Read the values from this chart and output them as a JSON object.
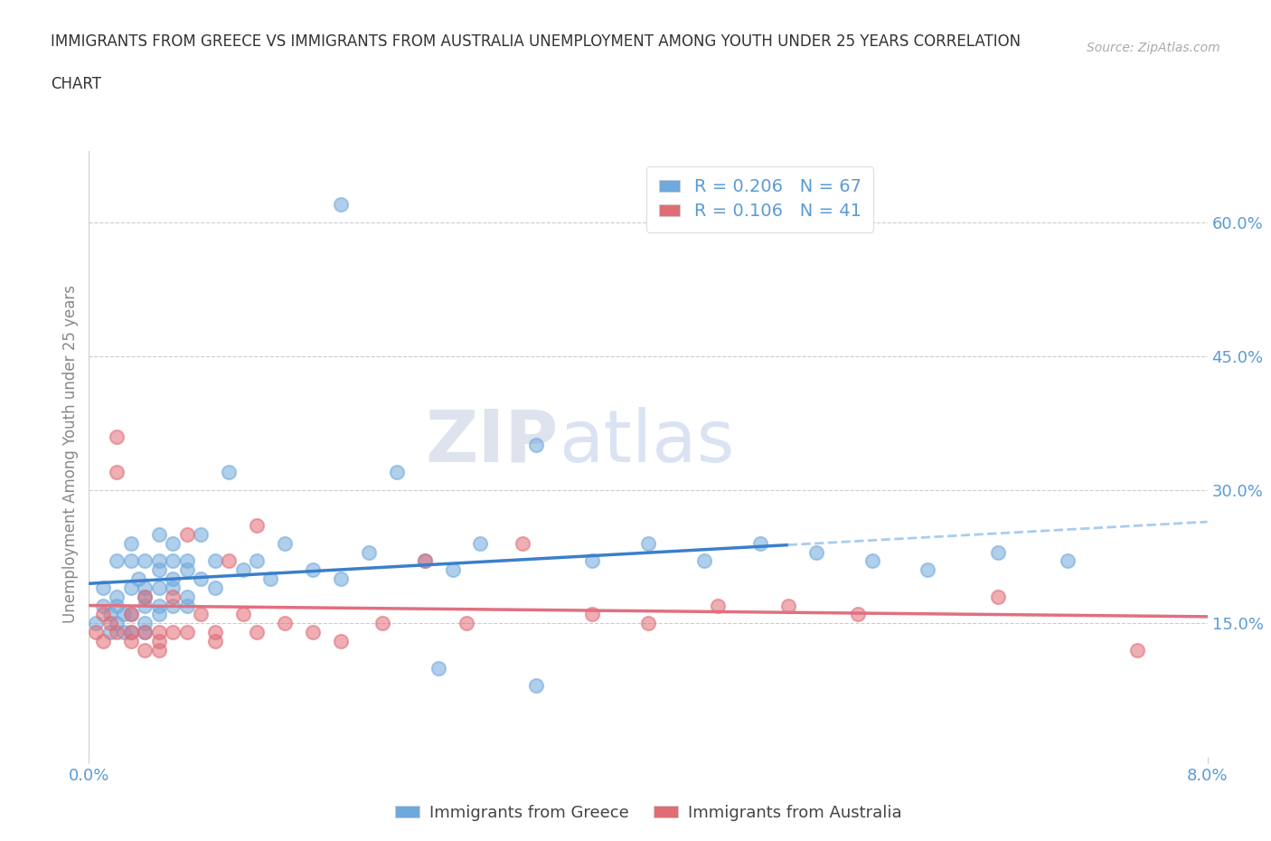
{
  "title_line1": "IMMIGRANTS FROM GREECE VS IMMIGRANTS FROM AUSTRALIA UNEMPLOYMENT AMONG YOUTH UNDER 25 YEARS CORRELATION",
  "title_line2": "CHART",
  "source": "Source: ZipAtlas.com",
  "ylabel": "Unemployment Among Youth under 25 years",
  "xlim": [
    0.0,
    0.08
  ],
  "ylim": [
    0.0,
    0.68
  ],
  "xticks": [
    0.0,
    0.08
  ],
  "xtick_labels": [
    "0.0%",
    "8.0%"
  ],
  "yticks_right": [
    0.15,
    0.3,
    0.45,
    0.6
  ],
  "ytick_labels_right": [
    "15.0%",
    "30.0%",
    "45.0%",
    "60.0%"
  ],
  "greece_color": "#6fa8dc",
  "australia_color": "#e06c75",
  "greece_R": 0.206,
  "greece_N": 67,
  "australia_R": 0.106,
  "australia_N": 41,
  "greece_x": [
    0.0005,
    0.001,
    0.001,
    0.0015,
    0.0015,
    0.002,
    0.002,
    0.002,
    0.002,
    0.0025,
    0.0025,
    0.003,
    0.003,
    0.003,
    0.003,
    0.003,
    0.0035,
    0.004,
    0.004,
    0.004,
    0.004,
    0.004,
    0.004,
    0.005,
    0.005,
    0.005,
    0.005,
    0.005,
    0.005,
    0.006,
    0.006,
    0.006,
    0.006,
    0.006,
    0.007,
    0.007,
    0.007,
    0.007,
    0.008,
    0.008,
    0.009,
    0.009,
    0.01,
    0.011,
    0.012,
    0.013,
    0.014,
    0.016,
    0.018,
    0.02,
    0.022,
    0.024,
    0.026,
    0.028,
    0.032,
    0.036,
    0.04,
    0.044,
    0.048,
    0.052,
    0.056,
    0.06,
    0.065,
    0.07,
    0.032,
    0.025,
    0.018
  ],
  "greece_y": [
    0.15,
    0.19,
    0.17,
    0.16,
    0.14,
    0.18,
    0.15,
    0.17,
    0.22,
    0.14,
    0.16,
    0.19,
    0.14,
    0.16,
    0.22,
    0.24,
    0.2,
    0.18,
    0.15,
    0.22,
    0.19,
    0.14,
    0.17,
    0.22,
    0.19,
    0.17,
    0.25,
    0.16,
    0.21,
    0.2,
    0.17,
    0.24,
    0.22,
    0.19,
    0.18,
    0.21,
    0.17,
    0.22,
    0.2,
    0.25,
    0.19,
    0.22,
    0.32,
    0.21,
    0.22,
    0.2,
    0.24,
    0.21,
    0.2,
    0.23,
    0.32,
    0.22,
    0.21,
    0.24,
    0.35,
    0.22,
    0.24,
    0.22,
    0.24,
    0.23,
    0.22,
    0.21,
    0.23,
    0.22,
    0.08,
    0.1,
    0.62
  ],
  "australia_x": [
    0.0005,
    0.001,
    0.001,
    0.0015,
    0.002,
    0.002,
    0.002,
    0.003,
    0.003,
    0.003,
    0.004,
    0.004,
    0.004,
    0.005,
    0.005,
    0.005,
    0.006,
    0.006,
    0.007,
    0.007,
    0.008,
    0.009,
    0.009,
    0.01,
    0.011,
    0.012,
    0.014,
    0.016,
    0.018,
    0.021,
    0.024,
    0.027,
    0.031,
    0.036,
    0.04,
    0.045,
    0.05,
    0.055,
    0.065,
    0.075,
    0.012
  ],
  "australia_y": [
    0.14,
    0.13,
    0.16,
    0.15,
    0.36,
    0.14,
    0.32,
    0.14,
    0.13,
    0.16,
    0.18,
    0.14,
    0.12,
    0.13,
    0.14,
    0.12,
    0.18,
    0.14,
    0.25,
    0.14,
    0.16,
    0.14,
    0.13,
    0.22,
    0.16,
    0.14,
    0.15,
    0.14,
    0.13,
    0.15,
    0.22,
    0.15,
    0.24,
    0.16,
    0.15,
    0.17,
    0.17,
    0.16,
    0.18,
    0.12,
    0.26
  ],
  "watermark_zip": "ZIP",
  "watermark_atlas": "atlas",
  "background_color": "#ffffff",
  "grid_color": "#cccccc",
  "title_color": "#333333",
  "axis_label_color": "#888888",
  "tick_color_blue": "#5b9bd5",
  "legend_label_color": "#444444"
}
